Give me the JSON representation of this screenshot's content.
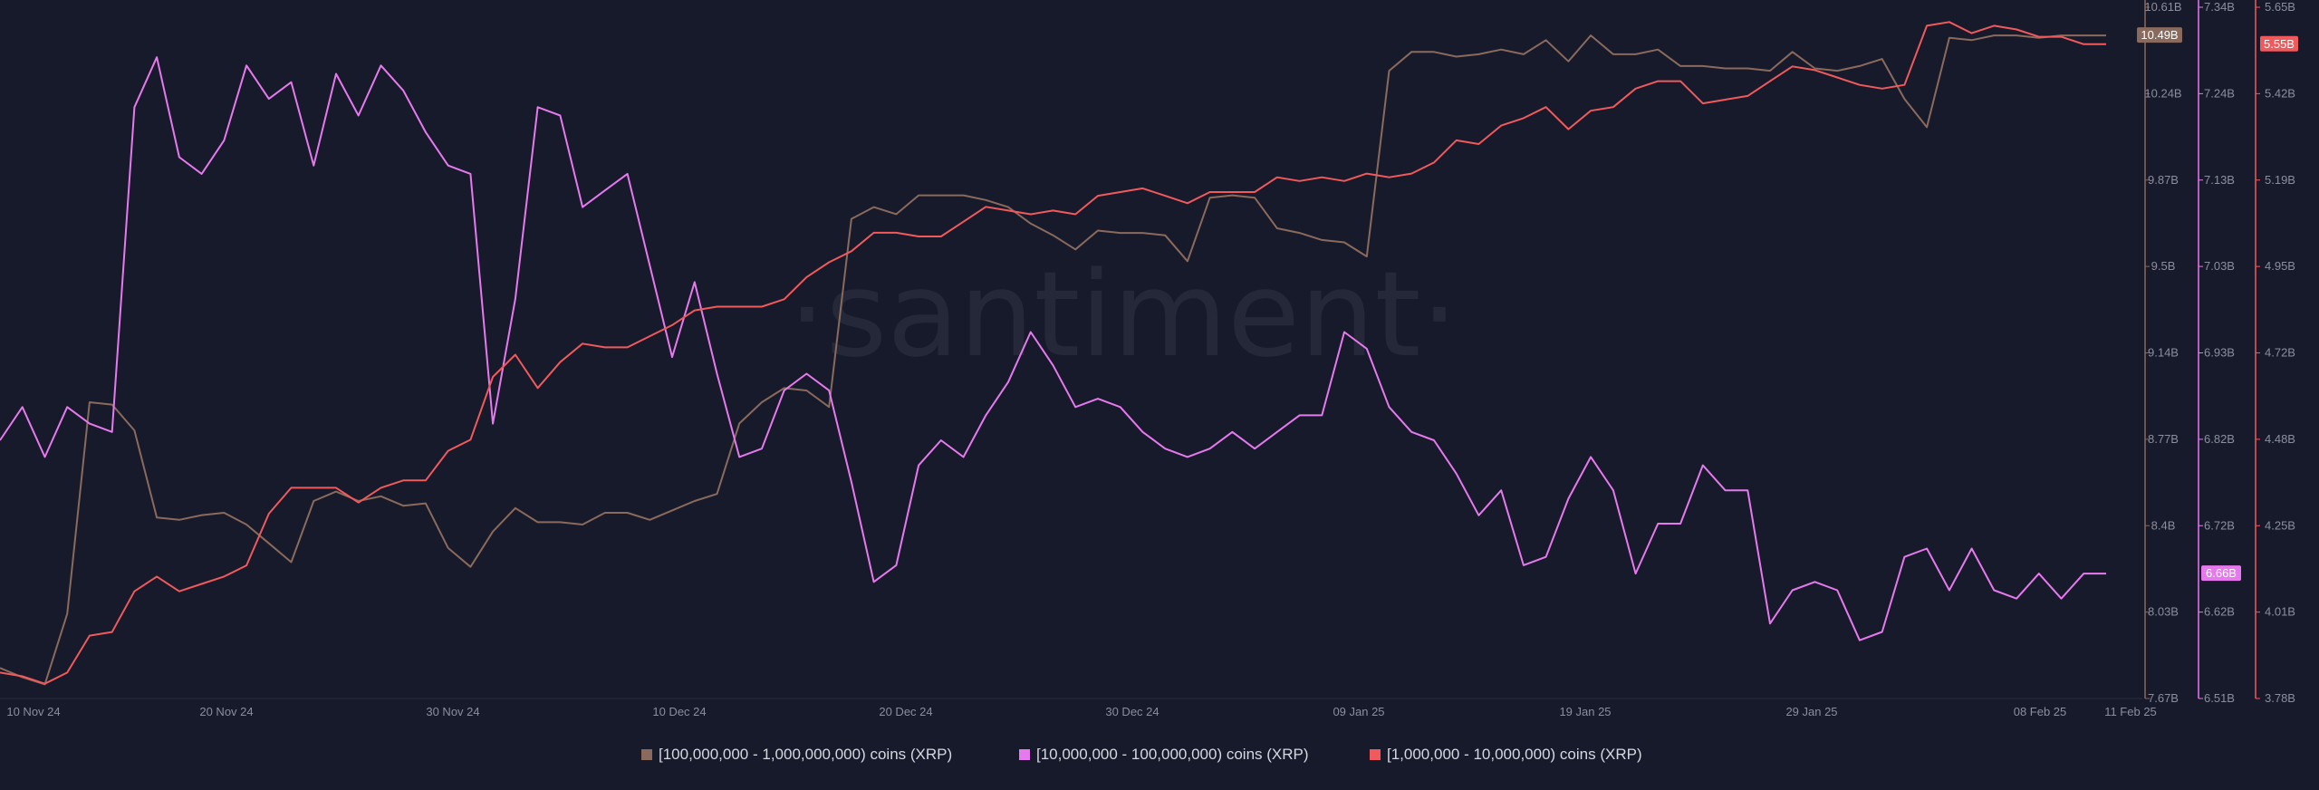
{
  "chart_data": {
    "type": "line",
    "watermark": "·santiment·",
    "x_ticks": [
      "10 Nov 24",
      "20 Nov 24",
      "30 Nov 24",
      "10 Dec 24",
      "20 Dec 24",
      "30 Dec 24",
      "09 Jan 25",
      "19 Jan 25",
      "29 Jan 25",
      "08 Feb 25",
      "11 Feb 25"
    ],
    "grid": false,
    "legend_position": "bottom-center",
    "axes": [
      {
        "id": "brown",
        "color": "#8a6a5c",
        "ticks": [
          "10.61B",
          "10.24B",
          "9.87B",
          "9.5B",
          "9.14B",
          "8.77B",
          "8.4B",
          "8.03B",
          "7.67B"
        ],
        "range": [
          7.67,
          10.61
        ],
        "last_value_label": "10.49B"
      },
      {
        "id": "pink",
        "color": "#e779ef",
        "ticks": [
          "7.34B",
          "7.24B",
          "7.13B",
          "7.03B",
          "6.93B",
          "6.82B",
          "6.72B",
          "6.62B",
          "6.51B"
        ],
        "range": [
          6.51,
          7.34
        ],
        "last_value_label": "6.66B"
      },
      {
        "id": "red",
        "color": "#f05a5c",
        "ticks": [
          "5.65B",
          "5.42B",
          "5.19B",
          "4.95B",
          "4.72B",
          "4.48B",
          "4.25B",
          "4.01B",
          "3.78B"
        ],
        "range": [
          3.78,
          5.65
        ],
        "last_value_label": "5.55B"
      }
    ],
    "series": [
      {
        "name": "[100,000,000 - 1,000,000,000) coins (XRP)",
        "axis": "brown",
        "color": "#8a6a5c",
        "values": [
          7.8,
          7.76,
          7.73,
          8.03,
          8.93,
          8.92,
          8.81,
          8.44,
          8.43,
          8.45,
          8.46,
          8.41,
          8.33,
          8.25,
          8.51,
          8.55,
          8.51,
          8.53,
          8.49,
          8.5,
          8.31,
          8.23,
          8.38,
          8.48,
          8.42,
          8.42,
          8.41,
          8.46,
          8.46,
          8.43,
          8.47,
          8.51,
          8.54,
          8.84,
          8.93,
          8.99,
          8.98,
          8.91,
          9.71,
          9.76,
          9.73,
          9.81,
          9.81,
          9.81,
          9.79,
          9.76,
          9.69,
          9.64,
          9.58,
          9.66,
          9.65,
          9.65,
          9.64,
          9.53,
          9.8,
          9.81,
          9.8,
          9.67,
          9.65,
          9.62,
          9.61,
          9.55,
          10.34,
          10.42,
          10.42,
          10.4,
          10.41,
          10.43,
          10.41,
          10.47,
          10.38,
          10.49,
          10.41,
          10.41,
          10.43,
          10.36,
          10.36,
          10.35,
          10.35,
          10.34,
          10.42,
          10.35,
          10.34,
          10.36,
          10.39,
          10.22,
          10.1,
          10.48,
          10.47,
          10.49,
          10.49,
          10.48,
          10.49,
          10.49,
          10.49
        ]
      },
      {
        "name": "[10,000,000 - 100,000,000) coins (XRP)",
        "axis": "pink",
        "color": "#e779ef",
        "values": [
          6.82,
          6.86,
          6.8,
          6.86,
          6.84,
          6.83,
          7.22,
          7.28,
          7.16,
          7.14,
          7.18,
          7.27,
          7.23,
          7.25,
          7.15,
          7.26,
          7.21,
          7.27,
          7.24,
          7.19,
          7.15,
          7.14,
          6.84,
          6.99,
          7.22,
          7.21,
          7.1,
          7.12,
          7.14,
          7.03,
          6.92,
          7.01,
          6.9,
          6.8,
          6.81,
          6.88,
          6.9,
          6.88,
          6.77,
          6.65,
          6.67,
          6.79,
          6.82,
          6.8,
          6.85,
          6.89,
          6.95,
          6.91,
          6.86,
          6.87,
          6.86,
          6.83,
          6.81,
          6.8,
          6.81,
          6.83,
          6.81,
          6.83,
          6.85,
          6.85,
          6.95,
          6.93,
          6.86,
          6.83,
          6.82,
          6.78,
          6.73,
          6.76,
          6.67,
          6.68,
          6.75,
          6.8,
          6.76,
          6.66,
          6.72,
          6.72,
          6.79,
          6.76,
          6.76,
          6.6,
          6.64,
          6.65,
          6.64,
          6.58,
          6.59,
          6.68,
          6.69,
          6.64,
          6.69,
          6.64,
          6.63,
          6.66,
          6.63,
          6.66,
          6.66
        ]
      },
      {
        "name": "[1,000,000 - 10,000,000) coins (XRP)",
        "axis": "red",
        "color": "#f05a5c",
        "values": [
          3.85,
          3.84,
          3.82,
          3.85,
          3.95,
          3.96,
          4.07,
          4.11,
          4.07,
          4.09,
          4.11,
          4.14,
          4.28,
          4.35,
          4.35,
          4.35,
          4.31,
          4.35,
          4.37,
          4.37,
          4.45,
          4.48,
          4.65,
          4.71,
          4.62,
          4.69,
          4.74,
          4.73,
          4.73,
          4.76,
          4.79,
          4.83,
          4.84,
          4.84,
          4.84,
          4.86,
          4.92,
          4.96,
          4.99,
          5.04,
          5.04,
          5.03,
          5.03,
          5.07,
          5.11,
          5.1,
          5.09,
          5.1,
          5.09,
          5.14,
          5.15,
          5.16,
          5.14,
          5.12,
          5.15,
          5.15,
          5.15,
          5.19,
          5.18,
          5.19,
          5.18,
          5.2,
          5.19,
          5.2,
          5.23,
          5.29,
          5.28,
          5.33,
          5.35,
          5.38,
          5.32,
          5.37,
          5.38,
          5.43,
          5.45,
          5.45,
          5.39,
          5.4,
          5.41,
          5.45,
          5.49,
          5.48,
          5.46,
          5.44,
          5.43,
          5.44,
          5.6,
          5.61,
          5.58,
          5.6,
          5.59,
          5.57,
          5.57,
          5.55,
          5.55
        ]
      }
    ]
  }
}
